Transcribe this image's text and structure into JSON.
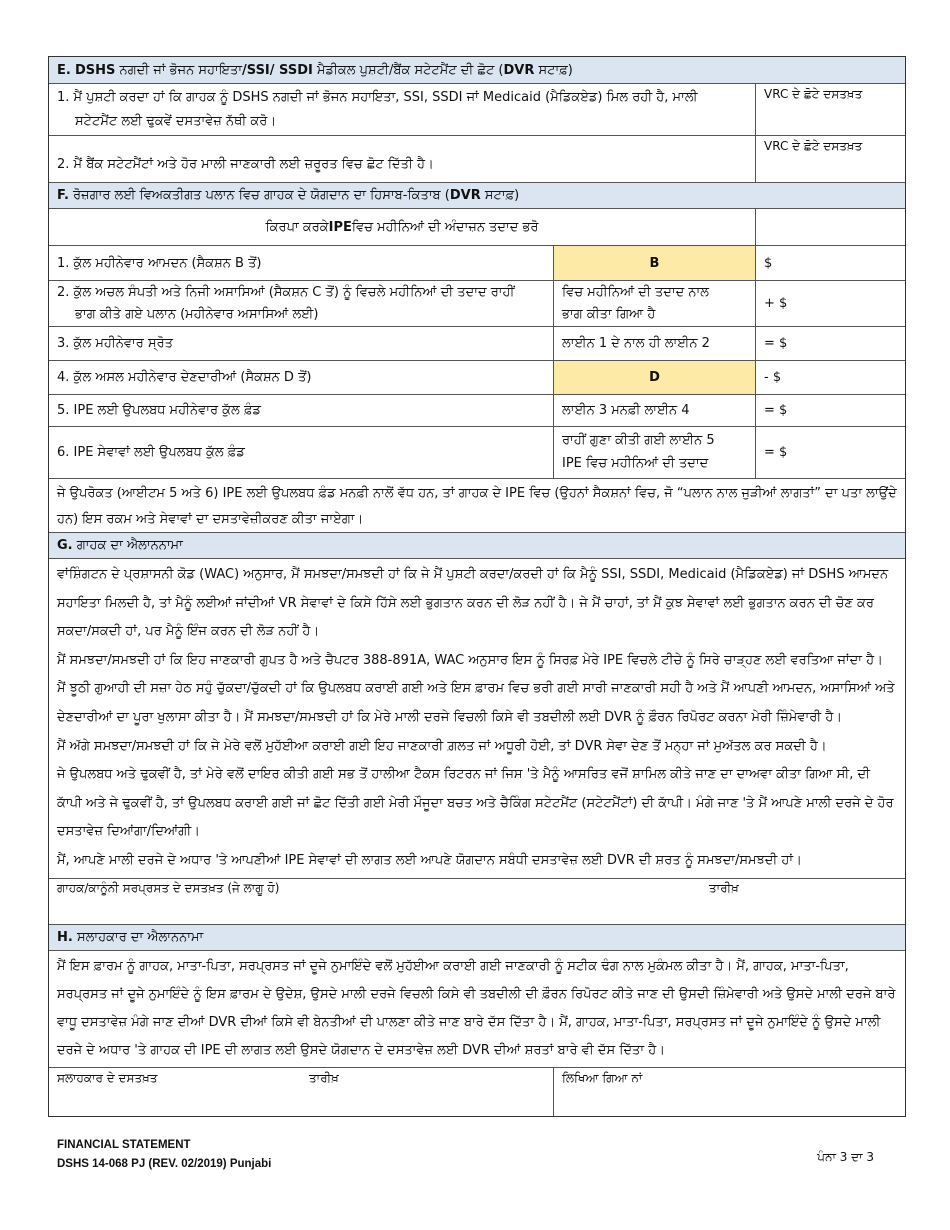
{
  "sectionE": {
    "header": {
      "letter": "E.",
      "p1": "DSHS",
      "p2": " ਨਗਦੀ ਜਾਂ ਭੋਜਨ ਸਹਾਇਤਾ",
      "p3": "/SSI/ SSDI",
      "p4": " ਮੈਡੀਕਲ ਪੁਸ਼ਟੀ/ਬੈਂਕ ਸਟੇਟਮੈਂਟ ਦੀ ਛੋਟ (",
      "p5": "DVR",
      "p6": " ਸਟਾਫ਼)"
    },
    "items": [
      {
        "line1": "1. ਮੈਂ ਪੁਸ਼ਟੀ ਕਰਦਾ ਹਾਂ ਕਿ ਗਾਹਕ ਨੂੰ DSHS ਨਗਦੀ ਜਾਂ ਭੋਜਨ ਸਹਾਇਤਾ, SSI, SSDI ਜਾਂ Medicaid (ਮੈਡਿਕਏਡ) ਮਿਲ ਰਹੀ ਹੈ, ਮਾਲੀ",
        "line2": "ਸਟੇਟਮੈਂਟ ਲਈ ਢੁਕਵੇਂ ਦਸਤਾਵੇਜ਼ ਨੱਥੀ ਕਰੋ।",
        "initials_label": "VRC ਦੇ ਛੋਟੇ ਦਸਤਖ਼ਤ"
      },
      {
        "line1": "2. ਮੈਂ ਬੈਂਕ ਸਟੇਟਮੈਂਟਾਂ ਅਤੇ ਹੋਰ ਮਾਲੀ ਜਾਣਕਾਰੀ ਲਈ ਜ਼ਰੂਰਤ ਵਿਚ ਛੋਟ ਦਿੱਤੀ ਹੈ।",
        "initials_label": "VRC ਦੇ ਛੋਟੇ ਦਸਤਖ਼ਤ"
      }
    ]
  },
  "sectionF": {
    "header": {
      "letter": "F.",
      "p1": " ਰੋਜ਼ਗਾਰ ਲਈ ਵਿਅਕਤੀਗਤ ਪਲਾਨ ਵਿਚ ਗਾਹਕ ਦੇ ਯੋਗਦਾਨ ਦਾ ਹਿਸਾਬ-ਕਿਤਾਬ (",
      "p2": "DVR",
      "p3": " ਸਟਾਫ਼)"
    },
    "instruction": {
      "p1": "ਕਿਰਪਾ ਕਰਕੇ ",
      "p2": "IPE",
      "p3": " ਵਿਚ ਮਹੀਨਿਆਂ ਦੀ ਅੰਦਾਜ਼ਨ ਤਦਾਦ ਭਰੋ"
    },
    "rows": [
      {
        "label": "1. ਕੁੱਲ ਮਹੀਨੇਵਾਰ ਆਮਦਨ (ਸੈਕਸ਼ਨ B ਤੋਂ)",
        "calc": "B",
        "value": "$"
      },
      {
        "label1": "2. ਕੁੱਲ ਅਚਲ ਸੰਪਤੀ ਅਤੇ ਨਿਜੀ ਅਸਾਸਿਆਂ (ਸੈਕਸ਼ਨ C ਤੋਂ) ਨੂੰ ਵਿਚਲੇ ਮਹੀਨਿਆਂ ਦੀ ਤਦਾਦ ਰਾਹੀਂ",
        "label2": "ਭਾਗ ਕੀਤੇ ਗਏ ਪਲਾਨ (ਮਹੀਨੇਵਾਰ ਅਸਾਸਿਆਂ ਲਈ)",
        "calc1": "ਵਿਚ ਮਹੀਨਿਆਂ ਦੀ ਤਦਾਦ ਨਾਲ",
        "calc2": "ਭਾਗ ਕੀਤਾ ਗਿਆ ਹੈ",
        "value": "+ $"
      },
      {
        "label": "3. ਕੁੱਲ ਮਹੀਨੇਵਾਰ ਸ੍ਰੋਤ",
        "calc": "ਲਾਈਨ 1 ਦੇ ਨਾਲ ਹੀ ਲਾਈਨ 2",
        "value": "= $"
      },
      {
        "label": "4. ਕੁੱਲ ਅਸਲ ਮਹੀਨੇਵਾਰ ਦੇਣਦਾਰੀਆਂ (ਸੈਕਸ਼ਨ D ਤੋਂ)",
        "calc": "D",
        "value": "- $"
      },
      {
        "label": "5. IPE ਲਈ ਉਪਲਬਧ ਮਹੀਨੇਵਾਰ ਕੁੱਲ ਫ਼ੰਡ",
        "calc": "ਲਾਈਨ 3 ਮਨਫ਼ੀ ਲਾਈਨ 4",
        "value": "= $"
      },
      {
        "label": "6. IPE ਸੇਵਾਵਾਂ ਲਈ ਉਪਲਬਧ ਕੁੱਲ ਫ਼ੰਡ",
        "calc1": "ਰਾਹੀਂ ਗੁਣਾ ਕੀਤੀ ਗਈ ਲਾਈਨ 5",
        "calc2": "IPE ਵਿਚ ਮਹੀਨਿਆਂ ਦੀ ਤਦਾਦ",
        "value": "= $"
      }
    ],
    "note": "ਜੇ ਉਪਰੋਕਤ (ਆਈਟਮ 5 ਅਤੇ 6) IPE ਲਈ ਉਪਲਬਧ ਫ਼ੰਡ ਮਨਫ਼ੀ ਨਾਲੋਂ ਵੱਧ ਹਨ, ਤਾਂ ਗਾਹਕ ਦੇ IPE ਵਿਚ (ਉਹਨਾਂ ਸੈਕਸ਼ਨਾਂ ਵਿਚ, ਜੋ “ਪਲਾਨ ਨਾਲ ਜੁੜੀਆਂ ਲਾਗਤਾਂ” ਦਾ ਪਤਾ ਲਾਉਂਦੇ ਹਨ) ਇਸ ਰਕਮ ਅਤੇ ਸੇਵਾਵਾਂ ਦਾ ਦਸਤਾਵੇਜ਼ੀਕਰਣ ਕੀਤਾ ਜਾਏਗਾ।"
  },
  "sectionG": {
    "header": {
      "letter": "G.",
      "p1": " ਗਾਹਕ ਦਾ ਐਲਾਨਨਾਮਾ"
    },
    "paragraphs": [
      "ਵਾਂਸ਼ਿੰਗਟਨ ਦੇ ਪ੍ਰਸ਼ਾਸਨੀ ਕੋਡ (WAC) ਅਨੁਸਾਰ, ਮੈਂ ਸਮਝਦਾ/ਸਮਝਦੀ ਹਾਂ ਕਿ ਜੇ ਮੈਂ ਪੁਸ਼ਟੀ ਕਰਦਾ/ਕਰਦੀ ਹਾਂ ਕਿ ਮੈਨੂੰ SSI, SSDI, Medicaid (ਮੈਡਿਕਏਡ) ਜਾਂ DSHS ਆਮਦਨ ਸਹਾਇਤਾ ਮਿਲਦੀ ਹੈ, ਤਾਂ ਮੈਨੂੰ ਲਈਆਂ ਜਾਂਦੀਆਂ VR ਸੇਵਾਵਾਂ ਦੇ ਕਿਸੇ ਹਿੱਸੇ ਲਈ ਭੁਗਤਾਨ ਕਰਨ ਦੀ ਲੋੜ ਨਹੀਂ ਹੈ। ਜੇ ਮੈਂ ਚਾਹਾਂ, ਤਾਂ ਮੈਂ ਕੁਝ ਸੇਵਾਵਾਂ ਲਈ ਭੁਗਤਾਨ ਕਰਨ ਦੀ ਚੋਣ ਕਰ ਸਕਦਾ/ਸਕਦੀ ਹਾਂ, ਪਰ ਮੈਨੂੰ ਇੰਜ ਕਰਨ ਦੀ ਲੋੜ ਨਹੀਂ ਹੈ।",
      "ਮੈਂ ਸਮਝਦਾ/ਸਮਝਦੀ ਹਾਂ ਕਿ ਇਹ ਜਾਣਕਾਰੀ ਗੁਪਤ ਹੈ ਅਤੇ ਚੈਪਟਰ 388-891A, WAC ਅਨੁਸਾਰ ਇਸ ਨੂੰ ਸਿਰਫ਼ ਮੇਰੇ IPE ਵਿਚਲੇ ਟੀਚੇ ਨੂੰ ਸਿਰੇ ਚਾੜ੍ਹਣ ਲਈ ਵਰਤਿਆ ਜਾਂਦਾ ਹੈ।",
      "ਮੈਂ ਝੂਠੀ ਗੁਆਹੀ ਦੀ ਸਜ਼ਾ ਹੇਠ ਸਹੁੰ ਚੁੱਕਦਾ/ਚੁੱਕਦੀ ਹਾਂ ਕਿ ਉਪਲਬਧ ਕਰਾਈ ਗਈ ਅਤੇ ਇਸ ਫ਼ਾਰਮ ਵਿਚ ਭਰੀ ਗਈ ਸਾਰੀ ਜਾਣਕਾਰੀ ਸਹੀ ਹੈ ਅਤੇ ਮੈਂ ਆਪਣੀ ਆਮਦਨ, ਅਸਾਸਿਆਂ ਅਤੇ ਦੇਣਦਾਰੀਆਂ ਦਾ ਪੂਰਾ ਖੁਲਾਸਾ ਕੀਤਾ ਹੈ। ਮੈਂ ਸਮਝਦਾ/ਸਮਝਦੀ ਹਾਂ ਕਿ ਮੇਰੇ ਮਾਲੀ ਦਰਜੇ ਵਿਚਲੀ ਕਿਸੇ ਵੀ ਤਬਦੀਲੀ ਲਈ DVR ਨੂੰ ਫ਼ੌਰਨ ਰਿਪੋਰਟ ਕਰਨਾ ਮੇਰੀ ਜ਼ਿੰਮੇਵਾਰੀ ਹੈ।",
      "ਮੈਂ ਅੱਗੇ ਸਮਝਦਾ/ਸਮਝਦੀ ਹਾਂ ਕਿ ਜੇ ਮੇਰੇ ਵਲੋਂ ਮੁਹੱਈਆ ਕਰਾਈ ਗਈ ਇਹ ਜਾਣਕਾਰੀ ਗ਼ਲਤ ਜਾਂ ਅਧੂਰੀ ਹੋਈ, ਤਾਂ DVR ਸੇਵਾ ਦੇਣ ਤੋਂ ਮਨ੍ਹਾ ਜਾਂ ਮੁਅੱਤਲ ਕਰ ਸਕਦੀ ਹੈ।",
      "ਜੇ ਉਪਲਬਧ ਅਤੇ ਢੁਕਵੀਂ ਹੈ, ਤਾਂ ਮੇਰੇ ਵਲੋਂ ਦਾਇਰ ਕੀਤੀ ਗਈ ਸਭ ਤੋਂ ਹਾਲੀਆ ਟੈਕਸ ਰਿਟਰਨ ਜਾਂ ਜਿਸ 'ਤੇ ਮੈਨੂੰ ਆਸਰਿਤ ਵਜੋਂ ਸ਼ਾਮਿਲ ਕੀਤੇ ਜਾਣ ਦਾ ਦਾਅਵਾ ਕੀਤਾ ਗਿਆ ਸੀ, ਦੀ ਕਾੱਪੀ ਅਤੇ ਜੇ ਢੁਕਵੀਂ ਹੈ, ਤਾਂ ਉਪਲਬਧ ਕਰਾਈ ਗਈ ਜਾਂ ਛੋਟ ਦਿੱਤੀ ਗਈ ਮੇਰੀ ਮੌਜੂਦਾ ਬਚਤ ਅਤੇ ਚੈਕਿੰਗ ਸਟੇਟਮੈਂਟ (ਸਟੇਟਮੈਂਟਾਂ) ਦੀ ਕਾੱਪੀ। ਮੰਗੇ ਜਾਣ 'ਤੇ ਮੈਂ ਆਪਣੇ ਮਾਲੀ ਦਰਜੇ ਦੇ ਹੋਰ ਦਸਤਾਵੇਜ਼ ਦਿਆਂਗਾ/ਦਿਆਂਗੀ।",
      "ਮੈਂ, ਆਪਣੇ ਮਾਲੀ ਦਰਜੇ ਦੇ ਅਧਾਰ 'ਤੇ ਆਪਣੀਆਂ IPE ਸੇਵਾਵਾਂ ਦੀ ਲਾਗਤ ਲਈ ਆਪਣੇ ਯੋਗਦਾਨ ਸਬੰਧੀ ਦਸਤਾਵੇਜ਼ ਲਈ DVR ਦੀ ਸ਼ਰਤ ਨੂੰ ਸਮਝਦਾ/ਸਮਝਦੀ ਹਾਂ।"
    ],
    "signature_label": "ਗਾਹਕ/ਕਾਨੂੰਨੀ ਸਰਪ੍ਰਸਤ ਦੇ ਦਸਤਖ਼ਤ (ਜੇ ਲਾਗੂ ਹੋ)",
    "date_label": "ਤਾਰੀਖ਼"
  },
  "sectionH": {
    "header": {
      "letter": "H.",
      "p1": " ਸਲਾਹਕਾਰ ਦਾ ਐਲਾਨਨਾਮਾ"
    },
    "paragraph": "ਮੈਂ ਇਸ ਫ਼ਾਰਮ ਨੂੰ ਗਾਹਕ, ਮਾਤਾ-ਪਿਤਾ, ਸਰਪ੍ਰਸਤ ਜਾਂ ਦੂਜੇ ਨੁਮਾਇੰਦੇ ਵਲੋਂ ਮੁਹੱਈਆ ਕਰਾਈ ਗਈ ਜਾਣਕਾਰੀ ਨੂੰ ਸਟੀਕ ਢੰਗ ਨਾਲ ਮੁਕੰਮਲ ਕੀਤਾ ਹੈ। ਮੈਂ, ਗਾਹਕ, ਮਾਤਾ-ਪਿਤਾ, ਸਰਪ੍ਰਸਤ ਜਾਂ ਦੂਜੇ ਨੁਮਾਇੰਦੇ ਨੂੰ ਇਸ ਫ਼ਾਰਮ ਦੇ ਉਦੇਸ਼, ਉਸਦੇ ਮਾਲੀ ਦਰਜੇ ਵਿਚਲੀ ਕਿਸੇ ਵੀ ਤਬਦੀਲੀ ਦੀ ਫ਼ੌਰਨ ਰਿਪੋਰਟ ਕੀਤੇ ਜਾਣ ਦੀ ਉਸਦੀ ਜ਼ਿੰਮੇਵਾਰੀ ਅਤੇ ਉਸਦੇ ਮਾਲੀ ਦਰਜੇ ਬਾਰੇ ਵਾਧੂ ਦਸਤਾਵੇਜ਼ ਮੰਗੇ ਜਾਣ ਦੀਆਂ DVR ਦੀਆਂ ਕਿਸੇ ਵੀ ਬੇਨਤੀਆਂ ਦੀ ਪਾਲਣਾ ਕੀਤੇ ਜਾਣ ਬਾਰੇ ਦੱਸ ਦਿੱਤਾ ਹੈ। ਮੈਂ, ਗਾਹਕ, ਮਾਤਾ-ਪਿਤਾ, ਸਰਪ੍ਰਸਤ ਜਾਂ ਦੂਜੇ ਨੁਮਾਇੰਦੇ ਨੂੰ ਉਸਦੇ ਮਾਲੀ ਦਰਜੇ ਦੇ ਅਧਾਰ 'ਤੇ ਗਾਹਕ ਦੀ IPE ਦੀ ਲਾਗਤ ਲਈ ਉਸਦੇ ਯੋਗਦਾਨ ਦੇ ਦਸਤਾਵੇਜ਼ ਲਈ DVR ਦੀਆਂ ਸ਼ਰਤਾਂ ਬਾਰੇ ਵੀ ਦੱਸ ਦਿੱਤਾ ਹੈ।",
    "signature_label": "ਸਲਾਹਕਾਰ ਦੇ ਦਸਤਖ਼ਤ",
    "date_label": "ਤਾਰੀਖ਼",
    "printed_name_label": "ਲਿਖਿਆ ਗਿਆ ਨਾਂ"
  },
  "footer": {
    "title": "FINANCIAL STATEMENT",
    "form_id": "DSHS 14-068 PJ (REV. 02/2019) Punjabi",
    "page": "ਪੰਨਾ 3 ਦਾ 3"
  },
  "colors": {
    "header_bg": "#dbe5f1",
    "highlight": "#fdeaa6"
  }
}
